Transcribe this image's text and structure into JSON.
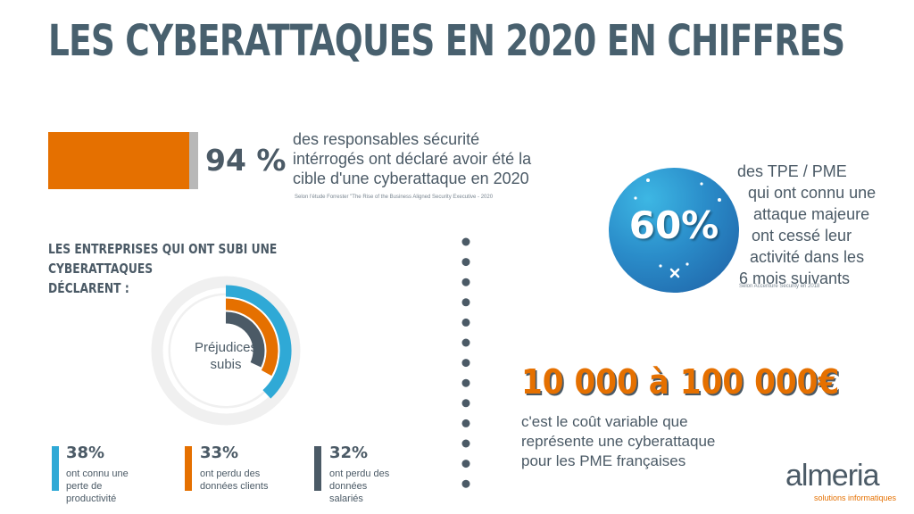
{
  "title": "LES CYBERATTAQUES EN 2020 EN CHIFFRES",
  "stat94": {
    "value": "94 %",
    "fraction": 0.94,
    "lines": [
      "des responsables sécurité",
      "intérrogés ont déclaré avoir été la",
      "cible d'une cyberattaque en 2020"
    ],
    "source": "Selon l'étude Forrester \"The Rise of the Business Aligned Security Executive - 2020"
  },
  "subtitle_lines": [
    "LES ENTREPRISES QUI ONT SUBI UNE CYBERATTAQUES",
    "DÉCLARENT :"
  ],
  "donut": {
    "label_lines": [
      "Préjudices",
      "subis"
    ],
    "items": [
      {
        "value": "38%",
        "desc_lines": [
          "ont connu une",
          "perte de",
          "productivité"
        ],
        "color": "#2fa9d6"
      },
      {
        "value": "33%",
        "desc_lines": [
          "ont perdu des",
          "données clients"
        ],
        "color": "#e57000"
      },
      {
        "value": "32%",
        "desc_lines": [
          "ont perdu des",
          "données",
          "salariés"
        ],
        "color": "#4b5a66"
      }
    ]
  },
  "stat60": {
    "value": "60%",
    "lines": [
      "des TPE / PME",
      "qui ont connu une",
      "attaque majeure",
      "ont cessé leur",
      "activité dans les",
      "6 mois suivants"
    ],
    "source": "Selon Accenture Security en 2018"
  },
  "cost": {
    "value": "10 000 à 100 000€",
    "lines": [
      "c'est le coût variable que",
      "représente une cyberattaque",
      "pour les PME françaises"
    ]
  },
  "logo": {
    "name": "almeria",
    "tagline": "solutions informatiques"
  },
  "colors": {
    "orange": "#e57000",
    "blue": "#2fa9d6",
    "slate": "#4b5a66",
    "ring_bg": "#f0f0f0"
  }
}
